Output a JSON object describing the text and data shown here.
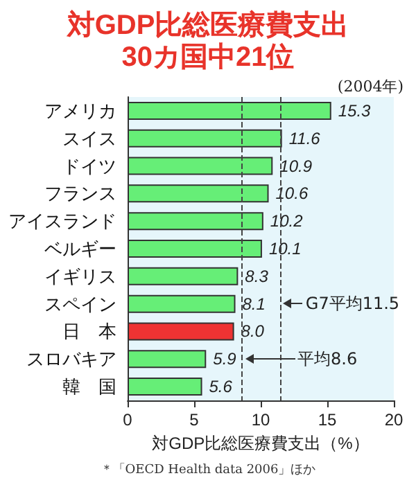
{
  "chart_data": {
    "type": "bar",
    "orientation": "horizontal",
    "title": "対GDP比総医療費支出\n30カ国中21位",
    "subtitle": "(2004年)",
    "xlabel": "対GDP比総医療費支出（%）",
    "categories": [
      "アメリカ",
      "スイス",
      "ドイツ",
      "フランス",
      "アイスランド",
      "ベルギー",
      "イギリス",
      "スペイン",
      "日　本",
      "スロバキア",
      "韓　国"
    ],
    "values": [
      15.3,
      11.6,
      10.9,
      10.6,
      10.2,
      10.1,
      8.3,
      8.1,
      8.0,
      5.9,
      5.6
    ],
    "colors": [
      "#66ee77",
      "#66ee77",
      "#66ee77",
      "#66ee77",
      "#66ee77",
      "#66ee77",
      "#66ee77",
      "#66ee77",
      "#ee3333",
      "#66ee77",
      "#66ee77"
    ],
    "value_labels": [
      "15.3",
      "11.6",
      "10.9",
      "10.6",
      "10.2",
      "10.1",
      "8.3",
      "8.1",
      "8.0",
      "5.9",
      "5.6"
    ],
    "xlim": [
      0,
      20
    ],
    "xticks": [
      0,
      5,
      10,
      15,
      20
    ],
    "grid": false,
    "ref_lines": [
      {
        "axis": "x",
        "value": 11.5,
        "label": "G7平均11.5",
        "line_style": "dashed"
      },
      {
        "axis": "x",
        "value": 8.6,
        "label": "平均8.6",
        "line_style": "dashed"
      }
    ],
    "annotations": [
      "＊「OECD Health data 2006」ほか"
    ]
  }
}
